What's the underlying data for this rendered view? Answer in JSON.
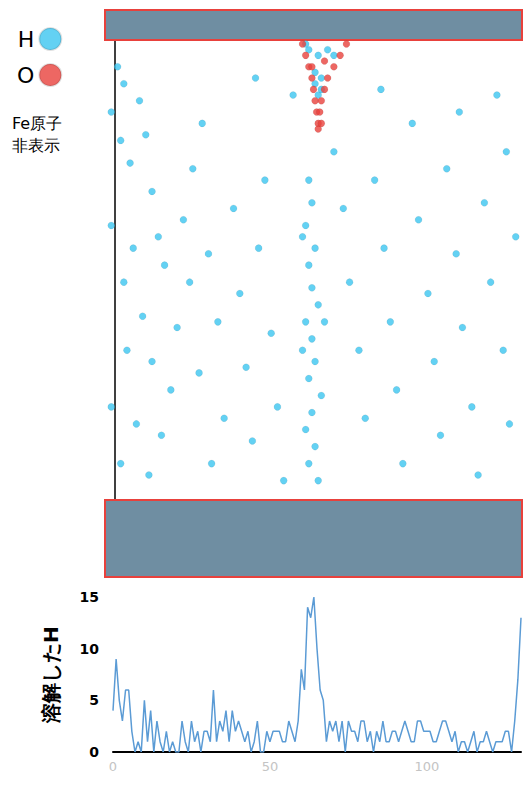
{
  "chart_data": [
    {
      "type": "scatter",
      "xlim": [
        -3,
        130
      ],
      "ylim": [
        0,
        100
      ],
      "tick_labels": false,
      "legend": "left",
      "annotation": "Fe原子非表示",
      "layers": [
        {
          "y": [
            0,
            13.6
          ]
        },
        {
          "y": [
            94.7,
            100
          ]
        }
      ],
      "series": [
        {
          "name": "H",
          "color": "#3cc6f0",
          "x": [
            1,
            3,
            -1,
            2,
            5,
            8,
            10,
            12,
            -1,
            6,
            3,
            14,
            16,
            9,
            4,
            12,
            -1,
            7,
            15,
            2,
            11,
            18,
            20,
            22,
            25,
            28,
            24,
            30,
            27,
            33,
            35,
            31,
            38,
            40,
            42,
            44,
            46,
            48,
            50,
            52,
            54,
            62,
            63,
            61,
            64,
            62,
            63,
            65,
            61,
            63,
            64,
            62,
            66,
            63,
            61,
            64,
            62,
            65,
            60,
            67,
            60,
            70,
            73,
            75,
            78,
            80,
            83,
            86,
            88,
            90,
            92,
            95,
            97,
            100,
            102,
            104,
            106,
            109,
            111,
            114,
            116,
            118,
            120,
            122,
            124,
            126,
            128,
            125,
            110,
            85,
            57,
            45,
            62,
            65,
            68,
            64,
            66,
            65,
            66,
            64,
            70,
            61
          ],
          "y": [
            90,
            87,
            82,
            77,
            73,
            84,
            78,
            68,
            62,
            58,
            52,
            60,
            55,
            46,
            40,
            38,
            30,
            27,
            25,
            20,
            18,
            33,
            44,
            63,
            72,
            80,
            52,
            57,
            36,
            45,
            28,
            20,
            65,
            50,
            37,
            24,
            58,
            70,
            43,
            30,
            17,
            70,
            66,
            62,
            58,
            55,
            51,
            48,
            45,
            42,
            38,
            35,
            32,
            29,
            26,
            23,
            20,
            17,
            40,
            45,
            60,
            75,
            65,
            52,
            40,
            28,
            70,
            58,
            45,
            33,
            20,
            80,
            63,
            50,
            38,
            25,
            72,
            57,
            44,
            30,
            18,
            66,
            52,
            85,
            40,
            27,
            60,
            75,
            82,
            86,
            85,
            88,
            93,
            92,
            93,
            89,
            88,
            85,
            86,
            87,
            92,
            94
          ]
        },
        {
          "name": "O",
          "color": "#e8413c",
          "x": [
            60,
            61,
            62,
            63,
            63.5,
            64,
            64.5,
            65,
            74,
            72,
            70,
            68,
            67,
            66,
            65.5,
            65,
            66,
            63,
            67
          ],
          "y": [
            94,
            92,
            90,
            88,
            86,
            84,
            82,
            80,
            94,
            92,
            90,
            88,
            86,
            84,
            82,
            79,
            80,
            90,
            91
          ]
        }
      ]
    },
    {
      "type": "line",
      "ylabel": "溶解したH",
      "color": "#5b9bd5",
      "xlim": [
        0,
        130
      ],
      "ylim": [
        0,
        15
      ],
      "xticks": [
        0,
        50,
        100
      ],
      "yticks": [
        0,
        5,
        10,
        15
      ],
      "x": [
        0,
        1,
        2,
        3,
        4,
        5,
        6,
        7,
        8,
        9,
        10,
        11,
        12,
        13,
        14,
        15,
        16,
        17,
        18,
        19,
        20,
        21,
        22,
        23,
        24,
        25,
        26,
        27,
        28,
        29,
        30,
        31,
        32,
        33,
        34,
        35,
        36,
        37,
        38,
        39,
        40,
        41,
        42,
        43,
        44,
        45,
        46,
        47,
        48,
        49,
        50,
        51,
        52,
        53,
        54,
        55,
        56,
        57,
        58,
        59,
        60,
        61,
        62,
        63,
        64,
        65,
        66,
        67,
        68,
        69,
        70,
        71,
        72,
        73,
        74,
        75,
        76,
        77,
        78,
        79,
        80,
        81,
        82,
        83,
        84,
        85,
        86,
        87,
        88,
        89,
        90,
        91,
        92,
        93,
        94,
        95,
        96,
        97,
        98,
        99,
        100,
        101,
        102,
        103,
        104,
        105,
        106,
        107,
        108,
        109,
        110,
        111,
        112,
        113,
        114,
        115,
        116,
        117,
        118,
        119,
        120,
        121,
        122,
        123,
        124,
        125,
        126,
        127,
        128,
        129,
        130
      ],
      "values": [
        4,
        9,
        5,
        3,
        6,
        6,
        2,
        0,
        1,
        0,
        5,
        1,
        4,
        0,
        3,
        1,
        0,
        2,
        0,
        1,
        0,
        0,
        3,
        1,
        0,
        3,
        1,
        2,
        0,
        2,
        2,
        1,
        6,
        1,
        3,
        2,
        4,
        1,
        4,
        2,
        3,
        2,
        1,
        2,
        0,
        1,
        3,
        0,
        0,
        2,
        1,
        2,
        2,
        2,
        1,
        1,
        3,
        2,
        1,
        3,
        8,
        6,
        14,
        13,
        15,
        10,
        6,
        5,
        1,
        3,
        2,
        3,
        1,
        3,
        0,
        3,
        2,
        2,
        1,
        3,
        3,
        1,
        2,
        0,
        2,
        1,
        3,
        1,
        1,
        2,
        2,
        1,
        2,
        3,
        2,
        1,
        1,
        3,
        3,
        2,
        2,
        2,
        1,
        1,
        2,
        3,
        3,
        2,
        1,
        2,
        0,
        1,
        1,
        0,
        1,
        2,
        0,
        1,
        1,
        2,
        1,
        0,
        1,
        1,
        1,
        2,
        2,
        0,
        3,
        7,
        13
      ]
    }
  ]
}
